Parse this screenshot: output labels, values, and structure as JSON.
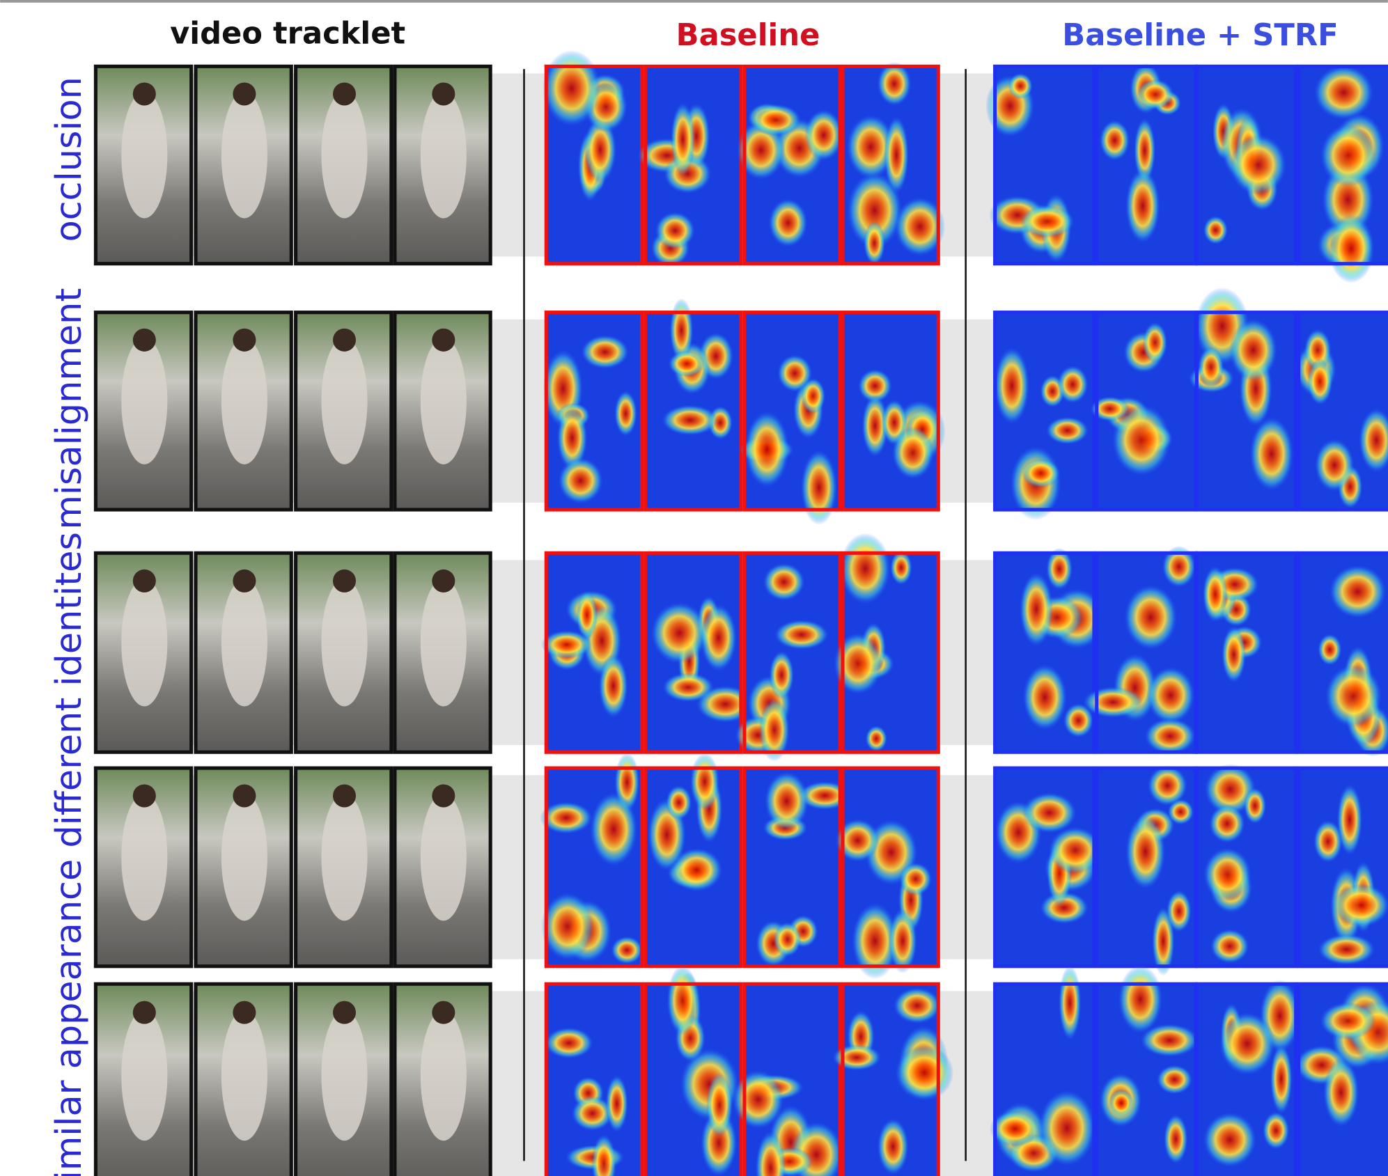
{
  "headers": {
    "video": "video tracklet",
    "baseline": "Baseline",
    "strf": "Baseline + STRF"
  },
  "row_labels": [
    "occlusion",
    "misalignment",
    "similar appearance different identites"
  ]
}
